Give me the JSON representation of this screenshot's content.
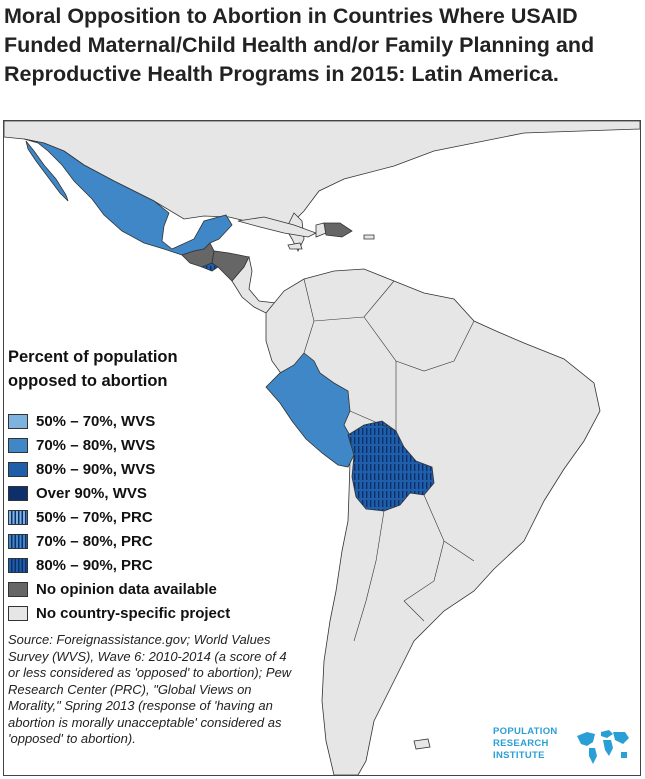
{
  "title": "Moral Opposition to Abortion in Countries Where USAID Funded Maternal/Child Health and/or Family Planning and Reproductive Health Programs in 2015: Latin America.",
  "legend": {
    "title": "Percent of population opposed to abortion",
    "items": [
      {
        "label": "50% – 70%, WVS",
        "color": "#7fb3df",
        "pattern": false
      },
      {
        "label": "70% – 80%, WVS",
        "color": "#3f87c7",
        "pattern": false
      },
      {
        "label": "80% – 90%, WVS",
        "color": "#1f5ea8",
        "pattern": false
      },
      {
        "label": "Over 90%, WVS",
        "color": "#0d2f6b",
        "pattern": false
      },
      {
        "label": "50% – 70%, PRC",
        "color": "#7fb3df",
        "pattern": true
      },
      {
        "label": "70% – 80%, PRC",
        "color": "#3f87c7",
        "pattern": true
      },
      {
        "label": "80% – 90%, PRC",
        "color": "#1f5ea8",
        "pattern": true
      },
      {
        "label": "No opinion data available",
        "color": "#666666",
        "pattern": false
      },
      {
        "label": "No country-specific project",
        "color": "#e6e6e6",
        "pattern": false
      }
    ]
  },
  "map": {
    "background_color": "#ffffff",
    "country_border_color": "#333333",
    "countries": [
      {
        "name": "Mexico",
        "category": "70% – 80%, WVS"
      },
      {
        "name": "Peru",
        "category": "70% – 80%, WVS"
      },
      {
        "name": "Guatemala",
        "category": "No opinion data available"
      },
      {
        "name": "Honduras",
        "category": "No opinion data available"
      },
      {
        "name": "Dominican Republic",
        "category": "No opinion data available"
      },
      {
        "name": "El Salvador",
        "category": "80% – 90%, PRC"
      },
      {
        "name": "Bolivia",
        "category": "80% – 90%, PRC"
      },
      {
        "name": "Colombia",
        "category": "No country-specific project"
      },
      {
        "name": "Venezuela",
        "category": "No country-specific project"
      },
      {
        "name": "Brazil",
        "category": "No country-specific project"
      },
      {
        "name": "Argentina",
        "category": "No country-specific project"
      },
      {
        "name": "Chile",
        "category": "No country-specific project"
      }
    ]
  },
  "source": "Source: Foreignassistance.gov; World Values Survey (WVS), Wave 6: 2010-2014 (a score of 4 or less considered as 'opposed' to abortion); Pew Research Center (PRC), \"Global Views on Morality,\" Spring 2013 (response of 'having an abortion is morally unacceptable' considered as 'opposed' to abortion).",
  "logo": {
    "line1": "POPULATION",
    "line2": "RESEARCH",
    "line3": "INSTITUTE",
    "color": "#2a9fd6"
  }
}
